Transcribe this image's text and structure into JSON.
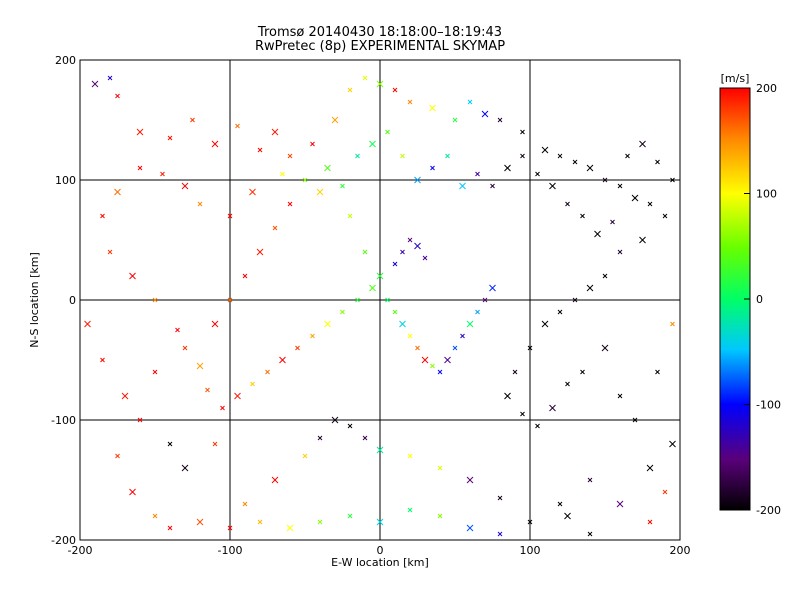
{
  "chart_data": {
    "type": "scatter",
    "title": "Tromsø 20140430 18:18:00–18:19:43",
    "subtitle": "RwPretec (8p) EXPERIMENTAL SKYMAP",
    "xlabel": "E-W location [km]",
    "ylabel": "N-S location [km]",
    "xlim": [
      -200,
      200
    ],
    "ylim": [
      -200,
      200
    ],
    "xticks": [
      -200,
      -100,
      0,
      100,
      200
    ],
    "yticks": [
      -200,
      -100,
      0,
      100,
      200
    ],
    "grid": true,
    "colorbar": {
      "label": "[m/s]",
      "range": [
        -200,
        200
      ],
      "ticks": [
        -200,
        -100,
        0,
        100,
        200
      ],
      "colormap": "rainbow-black-purple-blue-cyan-green-yellow-red"
    },
    "point_style": "cross markers (x) and small dots, colored by line-of-sight velocity",
    "points": [
      [
        -190,
        180,
        -150
      ],
      [
        -180,
        185,
        -120
      ],
      [
        -175,
        170,
        200
      ],
      [
        -160,
        140,
        190
      ],
      [
        -140,
        135,
        195
      ],
      [
        -125,
        150,
        180
      ],
      [
        -110,
        130,
        200
      ],
      [
        -95,
        145,
        160
      ],
      [
        -80,
        125,
        200
      ],
      [
        -70,
        140,
        190
      ],
      [
        -60,
        120,
        175
      ],
      [
        -45,
        130,
        200
      ],
      [
        -30,
        150,
        140
      ],
      [
        -20,
        175,
        120
      ],
      [
        -10,
        185,
        90
      ],
      [
        0,
        180,
        60
      ],
      [
        10,
        175,
        200
      ],
      [
        20,
        165,
        150
      ],
      [
        35,
        160,
        100
      ],
      [
        50,
        150,
        20
      ],
      [
        60,
        165,
        -50
      ],
      [
        70,
        155,
        -100
      ],
      [
        80,
        150,
        -180
      ],
      [
        95,
        140,
        -200
      ],
      [
        110,
        125,
        -200
      ],
      [
        120,
        120,
        -190
      ],
      [
        130,
        115,
        -200
      ],
      [
        140,
        110,
        -200
      ],
      [
        150,
        100,
        -190
      ],
      [
        160,
        95,
        -200
      ],
      [
        170,
        85,
        -200
      ],
      [
        180,
        80,
        -200
      ],
      [
        190,
        70,
        -200
      ],
      [
        175,
        50,
        -200
      ],
      [
        160,
        40,
        -180
      ],
      [
        150,
        20,
        -200
      ],
      [
        140,
        10,
        -200
      ],
      [
        130,
        0,
        -190
      ],
      [
        120,
        -10,
        -200
      ],
      [
        110,
        -20,
        -200
      ],
      [
        100,
        -40,
        -200
      ],
      [
        90,
        -60,
        -190
      ],
      [
        85,
        -80,
        -200
      ],
      [
        95,
        -95,
        -200
      ],
      [
        105,
        -105,
        -200
      ],
      [
        115,
        -90,
        -180
      ],
      [
        125,
        -70,
        -200
      ],
      [
        135,
        -60,
        -200
      ],
      [
        150,
        -40,
        -190
      ],
      [
        160,
        -80,
        -200
      ],
      [
        170,
        -100,
        -200
      ],
      [
        180,
        -140,
        -200
      ],
      [
        140,
        -150,
        -180
      ],
      [
        120,
        -170,
        -200
      ],
      [
        125,
        -180,
        -200
      ],
      [
        100,
        -185,
        -200
      ],
      [
        80,
        -165,
        -190
      ],
      [
        60,
        -150,
        -150
      ],
      [
        40,
        -140,
        90
      ],
      [
        20,
        -130,
        100
      ],
      [
        0,
        -125,
        -20
      ],
      [
        -10,
        -115,
        -170
      ],
      [
        -20,
        -105,
        -200
      ],
      [
        -30,
        -100,
        -190
      ],
      [
        -40,
        -115,
        -180
      ],
      [
        -50,
        -130,
        120
      ],
      [
        -70,
        -150,
        200
      ],
      [
        -90,
        -170,
        150
      ],
      [
        -110,
        -120,
        180
      ],
      [
        -130,
        -140,
        -190
      ],
      [
        -140,
        -120,
        -200
      ],
      [
        -160,
        -100,
        200
      ],
      [
        -170,
        -80,
        190
      ],
      [
        -150,
        -60,
        200
      ],
      [
        -130,
        -40,
        180
      ],
      [
        -110,
        -20,
        200
      ],
      [
        -100,
        0,
        160
      ],
      [
        -90,
        20,
        200
      ],
      [
        -80,
        40,
        190
      ],
      [
        -70,
        60,
        170
      ],
      [
        -60,
        80,
        200
      ],
      [
        -40,
        90,
        120
      ],
      [
        -20,
        70,
        80
      ],
      [
        -10,
        40,
        40
      ],
      [
        0,
        20,
        20
      ],
      [
        5,
        0,
        0
      ],
      [
        10,
        -10,
        40
      ],
      [
        15,
        -20,
        -40
      ],
      [
        20,
        -30,
        100
      ],
      [
        25,
        -40,
        160
      ],
      [
        30,
        -50,
        200
      ],
      [
        35,
        -55,
        60
      ],
      [
        40,
        -60,
        -100
      ],
      [
        45,
        -50,
        -140
      ],
      [
        50,
        -40,
        -80
      ],
      [
        55,
        -30,
        -120
      ],
      [
        60,
        -20,
        0
      ],
      [
        65,
        -10,
        -60
      ],
      [
        70,
        0,
        -150
      ],
      [
        75,
        10,
        -90
      ],
      [
        20,
        50,
        -150
      ],
      [
        15,
        40,
        -130
      ],
      [
        25,
        45,
        -120
      ],
      [
        30,
        35,
        -140
      ],
      [
        10,
        30,
        -110
      ],
      [
        -5,
        10,
        40
      ],
      [
        -15,
        0,
        20
      ],
      [
        -25,
        -10,
        60
      ],
      [
        -35,
        -20,
        100
      ],
      [
        -45,
        -30,
        140
      ],
      [
        -55,
        -40,
        180
      ],
      [
        -65,
        -50,
        200
      ],
      [
        -75,
        -60,
        160
      ],
      [
        -85,
        -70,
        120
      ],
      [
        -95,
        -80,
        190
      ],
      [
        -105,
        -90,
        200
      ],
      [
        -115,
        -75,
        170
      ],
      [
        -120,
        -55,
        140
      ],
      [
        -135,
        -25,
        200
      ],
      [
        -150,
        0,
        150
      ],
      [
        -165,
        20,
        200
      ],
      [
        -180,
        40,
        180
      ],
      [
        -185,
        70,
        200
      ],
      [
        -175,
        90,
        160
      ],
      [
        -160,
        110,
        200
      ],
      [
        -145,
        105,
        190
      ],
      [
        -130,
        95,
        200
      ],
      [
        -120,
        80,
        150
      ],
      [
        -100,
        70,
        200
      ],
      [
        -85,
        90,
        180
      ],
      [
        -65,
        105,
        100
      ],
      [
        -50,
        100,
        60
      ],
      [
        -35,
        110,
        40
      ],
      [
        -25,
        95,
        20
      ],
      [
        -15,
        120,
        -20
      ],
      [
        -5,
        130,
        10
      ],
      [
        5,
        140,
        40
      ],
      [
        15,
        120,
        80
      ],
      [
        25,
        100,
        -60
      ],
      [
        35,
        110,
        -100
      ],
      [
        45,
        120,
        -20
      ],
      [
        55,
        95,
        -50
      ],
      [
        65,
        105,
        -130
      ],
      [
        75,
        95,
        -180
      ],
      [
        85,
        110,
        -200
      ],
      [
        95,
        120,
        -190
      ],
      [
        105,
        105,
        -200
      ],
      [
        115,
        95,
        -200
      ],
      [
        125,
        80,
        -190
      ],
      [
        135,
        70,
        -200
      ],
      [
        145,
        55,
        -200
      ],
      [
        155,
        65,
        -180
      ],
      [
        165,
        120,
        -200
      ],
      [
        175,
        130,
        -190
      ],
      [
        185,
        115,
        -200
      ],
      [
        195,
        100,
        -200
      ],
      [
        -195,
        -20,
        190
      ],
      [
        -185,
        -50,
        200
      ],
      [
        -175,
        -130,
        180
      ],
      [
        -165,
        -160,
        200
      ],
      [
        -150,
        -180,
        150
      ],
      [
        -140,
        -190,
        200
      ],
      [
        -120,
        -185,
        170
      ],
      [
        -100,
        -190,
        200
      ],
      [
        -80,
        -185,
        130
      ],
      [
        -60,
        -190,
        100
      ],
      [
        -40,
        -185,
        60
      ],
      [
        -20,
        -180,
        20
      ],
      [
        0,
        -185,
        -40
      ],
      [
        20,
        -175,
        0
      ],
      [
        40,
        -180,
        60
      ],
      [
        60,
        -190,
        -80
      ],
      [
        80,
        -195,
        -120
      ],
      [
        140,
        -195,
        -200
      ],
      [
        160,
        -170,
        -150
      ],
      [
        180,
        -185,
        200
      ],
      [
        190,
        -160,
        180
      ],
      [
        195,
        -120,
        -200
      ],
      [
        185,
        -60,
        -200
      ],
      [
        195,
        -20,
        150
      ]
    ]
  }
}
